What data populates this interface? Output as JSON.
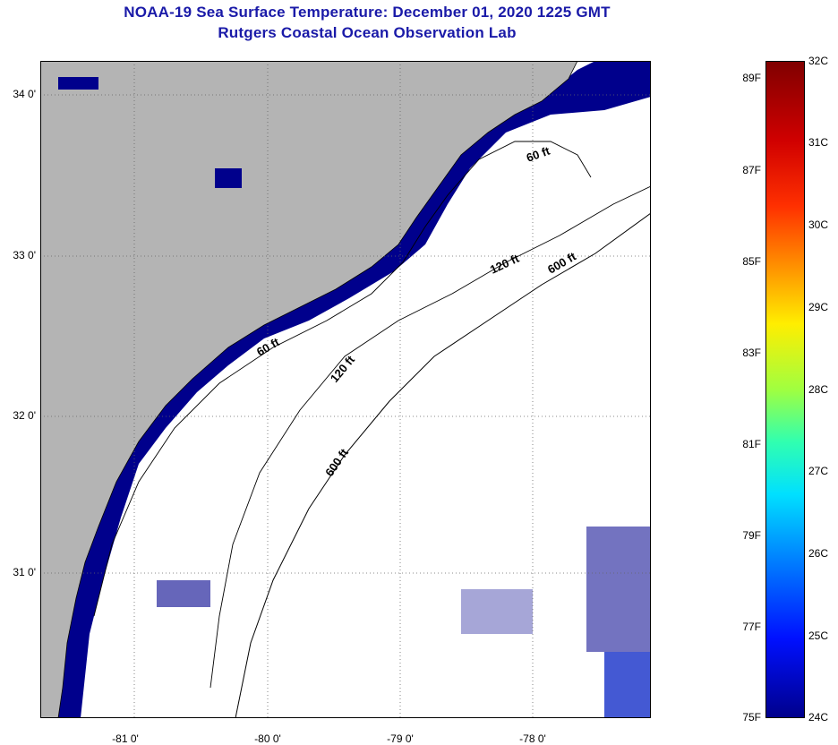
{
  "header": {
    "title": "NOAA-19 Sea Surface Temperature:  December 01, 2020 1225 GMT",
    "subtitle": "Rutgers Coastal Ocean Observation Lab"
  },
  "map": {
    "lon_ticks": [
      "-81 0'",
      "-80 0'",
      "-79 0'",
      "-78 0'"
    ],
    "lat_ticks": [
      "34 0'",
      "33 0'",
      "32 0'",
      "31 0'"
    ],
    "contour_labels": [
      "60 ft",
      "120 ft",
      "600 ft",
      "60 ft",
      "120 ft",
      "600 ft"
    ],
    "colors": {
      "land": "#b4b4b4",
      "cold_water": "#00008c",
      "no_data": "#ffffff",
      "coast": "#000000"
    }
  },
  "colorbar": {
    "fahrenheit": [
      "89F",
      "87F",
      "85F",
      "83F",
      "81F",
      "79F",
      "77F",
      "75F"
    ],
    "celsius": [
      "32C",
      "31C",
      "30C",
      "29C",
      "28C",
      "27C",
      "26C",
      "25C",
      "24C"
    ]
  }
}
